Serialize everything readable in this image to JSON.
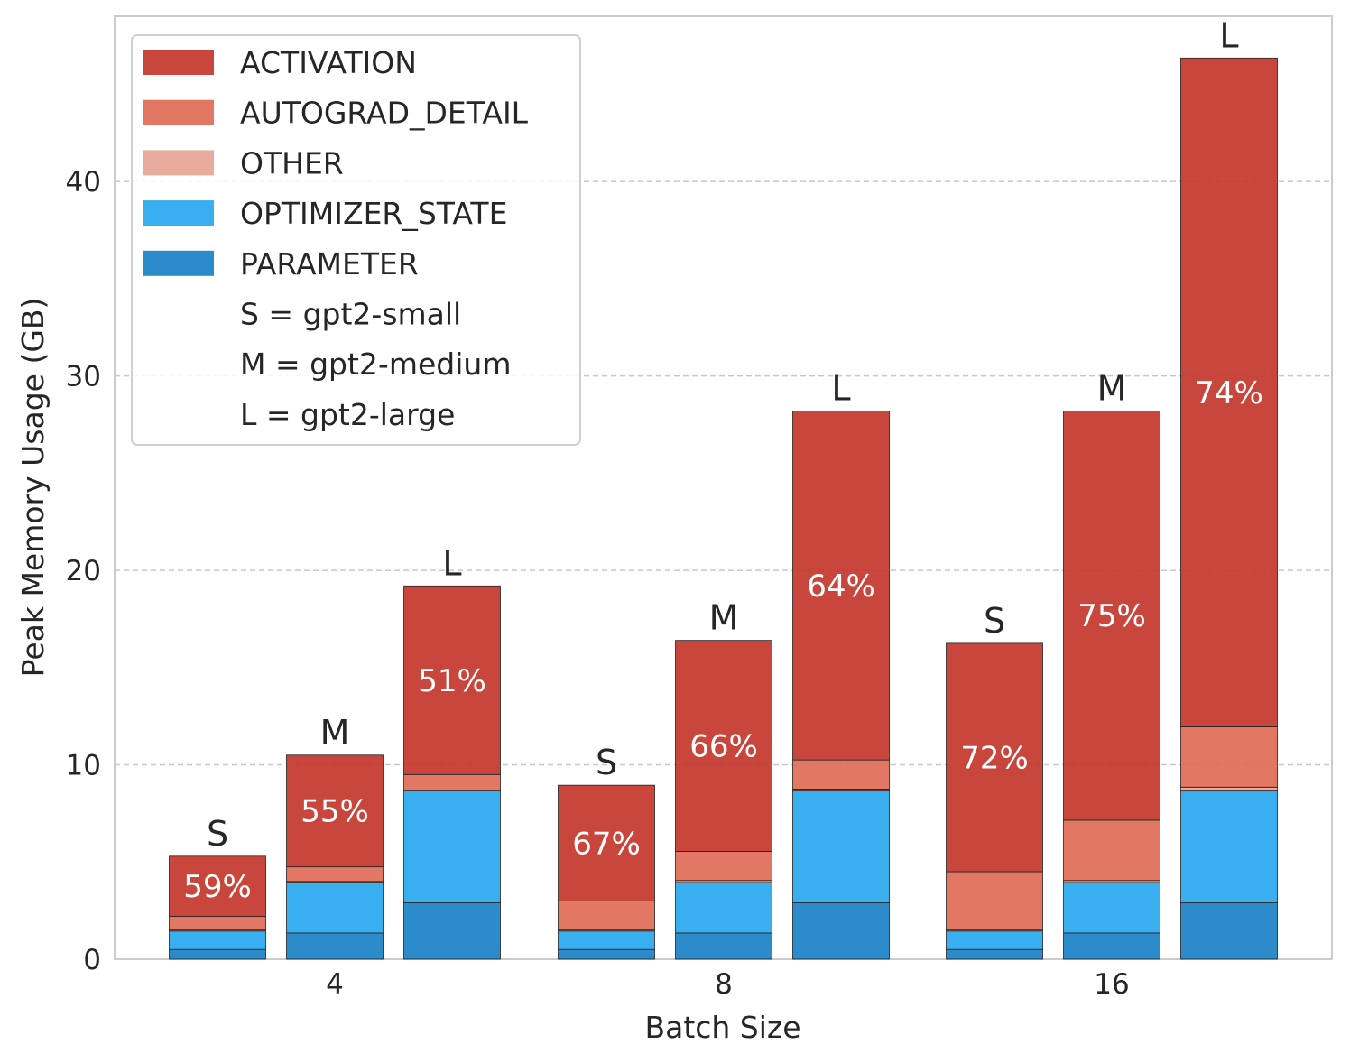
{
  "chart_data": {
    "type": "bar",
    "stacked": true,
    "xlabel": "Batch Size",
    "ylabel": "Peak Memory Usage (GB)",
    "ylim": [
      0,
      48.5
    ],
    "yticks": [
      0,
      10,
      20,
      30,
      40
    ],
    "grid": "y-dashed",
    "legend_position": "top-left",
    "categories": [
      "4",
      "8",
      "16"
    ],
    "models": [
      "S",
      "M",
      "L"
    ],
    "series": [
      {
        "name": "PARAMETER",
        "color": "#1a82c4"
      },
      {
        "name": "OPTIMIZER_STATE",
        "color": "#29a8ef"
      },
      {
        "name": "OTHER",
        "color": "#e5a593"
      },
      {
        "name": "AUTOGRAD_DETAIL",
        "color": "#df6c57"
      },
      {
        "name": "ACTIVATION",
        "color": "#c4362b"
      }
    ],
    "legend_order": [
      "ACTIVATION",
      "AUTOGRAD_DETAIL",
      "OTHER",
      "OPTIMIZER_STATE",
      "PARAMETER"
    ],
    "legend_notes": [
      "S = gpt2-small",
      "M = gpt2-medium",
      "L = gpt2-large"
    ],
    "bars": [
      {
        "category": "4",
        "model": "S",
        "values": {
          "PARAMETER": 0.5,
          "OPTIMIZER_STATE": 0.95,
          "OTHER": 0.05,
          "AUTOGRAD_DETAIL": 0.7,
          "ACTIVATION": 3.1
        },
        "percent_label": "59%"
      },
      {
        "category": "4",
        "model": "M",
        "values": {
          "PARAMETER": 1.35,
          "OPTIMIZER_STATE": 2.6,
          "OTHER": 0.05,
          "AUTOGRAD_DETAIL": 0.75,
          "ACTIVATION": 5.75
        },
        "percent_label": "55%"
      },
      {
        "category": "4",
        "model": "L",
        "values": {
          "PARAMETER": 2.9,
          "OPTIMIZER_STATE": 5.75,
          "OTHER": 0.05,
          "AUTOGRAD_DETAIL": 0.8,
          "ACTIVATION": 9.7
        },
        "percent_label": "51%"
      },
      {
        "category": "8",
        "model": "S",
        "values": {
          "PARAMETER": 0.5,
          "OPTIMIZER_STATE": 0.95,
          "OTHER": 0.05,
          "AUTOGRAD_DETAIL": 1.5,
          "ACTIVATION": 5.95
        },
        "percent_label": "67%"
      },
      {
        "category": "8",
        "model": "M",
        "values": {
          "PARAMETER": 1.35,
          "OPTIMIZER_STATE": 2.6,
          "OTHER": 0.1,
          "AUTOGRAD_DETAIL": 1.5,
          "ACTIVATION": 10.85
        },
        "percent_label": "66%"
      },
      {
        "category": "8",
        "model": "L",
        "values": {
          "PARAMETER": 2.9,
          "OPTIMIZER_STATE": 5.75,
          "OTHER": 0.1,
          "AUTOGRAD_DETAIL": 1.5,
          "ACTIVATION": 17.95
        },
        "percent_label": "64%"
      },
      {
        "category": "16",
        "model": "S",
        "values": {
          "PARAMETER": 0.5,
          "OPTIMIZER_STATE": 0.95,
          "OTHER": 0.05,
          "AUTOGRAD_DETAIL": 3.0,
          "ACTIVATION": 11.75
        },
        "percent_label": "72%"
      },
      {
        "category": "16",
        "model": "M",
        "values": {
          "PARAMETER": 1.35,
          "OPTIMIZER_STATE": 2.6,
          "OTHER": 0.1,
          "AUTOGRAD_DETAIL": 3.1,
          "ACTIVATION": 21.05
        },
        "percent_label": "75%"
      },
      {
        "category": "16",
        "model": "L",
        "values": {
          "PARAMETER": 2.9,
          "OPTIMIZER_STATE": 5.75,
          "OTHER": 0.2,
          "AUTOGRAD_DETAIL": 3.1,
          "ACTIVATION": 34.4
        },
        "percent_label": "74%"
      }
    ]
  }
}
